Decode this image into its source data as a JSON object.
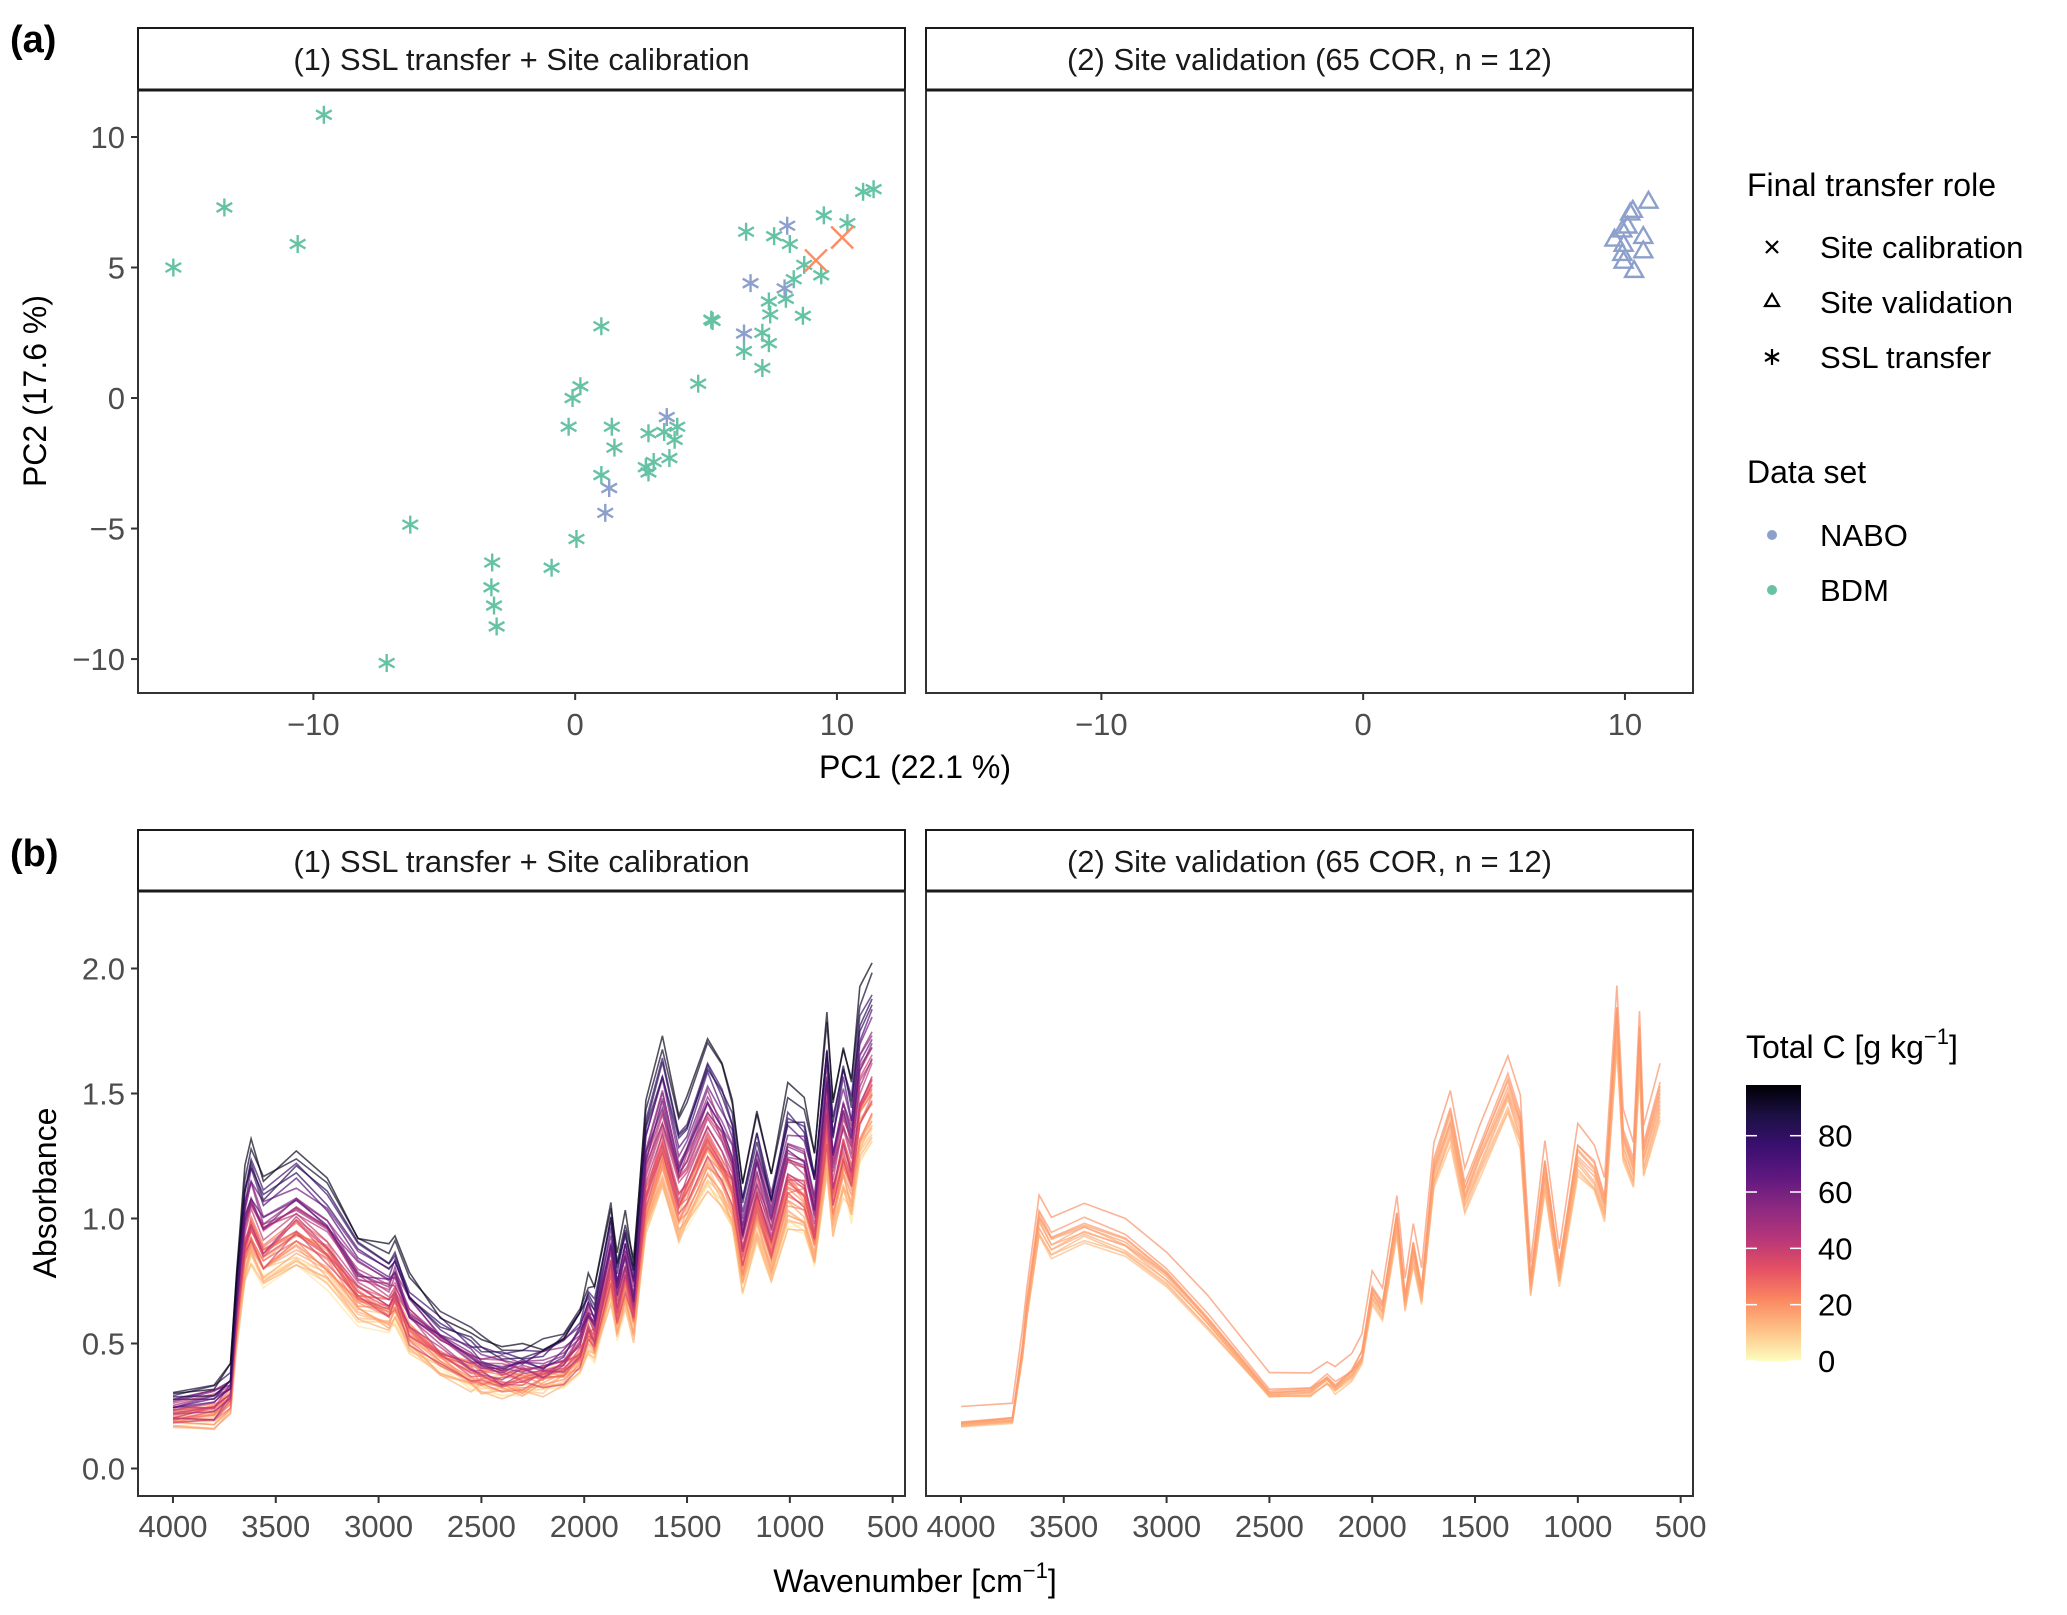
{
  "figure": {
    "panel_a_label": "(a)",
    "panel_b_label": "(b)"
  },
  "colors": {
    "NABO": "#8da0cb",
    "BDM": "#66c2a5",
    "site_calibration": "#fc8d62"
  },
  "chart_data": [
    {
      "type": "scatter",
      "facets": [
        "(1) SSL transfer + Site calibration",
        "(2) Site validation (65 COR, n = 12)"
      ],
      "xlabel": "PC1 (22.1 %)",
      "ylabel": "PC2 (17.6 %)",
      "xlim": [
        -16.7,
        12.6
      ],
      "ylim": [
        -11.3,
        11.8
      ],
      "xticks": [
        -10,
        0,
        10
      ],
      "xtick_labels": [
        "−10",
        "0",
        "10"
      ],
      "yticks": [
        10,
        5,
        0,
        -5,
        -10
      ],
      "ytick_labels": [
        "10",
        "5",
        "0",
        "−5",
        "−10"
      ],
      "grid": false,
      "legend": {
        "position": "right",
        "shape_title": "Final transfer role",
        "shape_items": [
          {
            "label": "Site calibration",
            "symbol": "×"
          },
          {
            "label": "Site validation",
            "symbol": "△"
          },
          {
            "label": "SSL transfer",
            "symbol": "✳"
          }
        ],
        "color_title": "Data set",
        "color_items": [
          {
            "label": "NABO",
            "color": "#8da0cb"
          },
          {
            "label": "BDM",
            "color": "#66c2a5"
          }
        ]
      },
      "series": [
        {
          "facet": 0,
          "dataset": "BDM",
          "role": "SSL transfer",
          "points": [
            [
              -15.35,
              5.0
            ],
            [
              -13.4,
              7.3
            ],
            [
              -10.6,
              5.9
            ],
            [
              -9.6,
              10.85
            ],
            [
              -6.3,
              -4.85
            ],
            [
              -7.2,
              -10.15
            ],
            [
              -3.17,
              -6.3
            ],
            [
              -3.2,
              -7.25
            ],
            [
              -3.1,
              -7.95
            ],
            [
              -3.0,
              -8.75
            ],
            [
              -0.9,
              -6.5
            ],
            [
              0.05,
              -5.4
            ],
            [
              -0.1,
              0.0
            ],
            [
              0.2,
              0.45
            ],
            [
              -0.25,
              -1.1
            ],
            [
              1.4,
              -1.1
            ],
            [
              1.5,
              -1.9
            ],
            [
              1.0,
              -2.95
            ],
            [
              1.0,
              2.75
            ],
            [
              2.8,
              -1.35
            ],
            [
              3.4,
              -1.3
            ],
            [
              3.9,
              -1.1
            ],
            [
              3.8,
              -1.6
            ],
            [
              3.6,
              -2.3
            ],
            [
              3.0,
              -2.45
            ],
            [
              2.7,
              -2.65
            ],
            [
              2.8,
              -2.85
            ],
            [
              4.7,
              0.55
            ],
            [
              5.2,
              3.0
            ],
            [
              5.25,
              2.95
            ],
            [
              6.45,
              1.8
            ],
            [
              7.15,
              1.15
            ],
            [
              7.4,
              2.1
            ],
            [
              7.15,
              2.5
            ],
            [
              6.53,
              6.37
            ],
            [
              7.6,
              6.2
            ],
            [
              8.2,
              5.9
            ],
            [
              7.4,
              3.7
            ],
            [
              7.45,
              3.2
            ],
            [
              8.05,
              3.8
            ],
            [
              8.7,
              3.15
            ],
            [
              8.35,
              4.55
            ],
            [
              8.75,
              5.1
            ],
            [
              9.4,
              4.7
            ],
            [
              9.5,
              7.0
            ],
            [
              10.4,
              6.7
            ],
            [
              11.0,
              7.9
            ],
            [
              11.4,
              8.0
            ]
          ]
        },
        {
          "facet": 0,
          "dataset": "NABO",
          "role": "SSL transfer",
          "points": [
            [
              8.1,
              6.6
            ],
            [
              6.7,
              4.4
            ],
            [
              8.0,
              4.2
            ],
            [
              6.45,
              2.47
            ],
            [
              3.5,
              -0.73
            ],
            [
              1.3,
              -3.45
            ],
            [
              1.15,
              -4.4
            ]
          ]
        },
        {
          "facet": 0,
          "dataset": "NABO",
          "role": "Site calibration",
          "points": [
            [
              9.2,
              5.27
            ],
            [
              10.2,
              6.15
            ]
          ]
        },
        {
          "facet": 1,
          "dataset": "NABO",
          "role": "Site validation",
          "points": [
            [
              10.9,
              7.55
            ],
            [
              10.3,
              7.2
            ],
            [
              10.2,
              7.1
            ],
            [
              10.1,
              6.6
            ],
            [
              9.9,
              6.45
            ],
            [
              9.6,
              6.1
            ],
            [
              10.7,
              6.2
            ],
            [
              9.95,
              5.9
            ],
            [
              10.7,
              5.65
            ],
            [
              9.9,
              5.55
            ],
            [
              9.95,
              5.25
            ],
            [
              10.35,
              4.9
            ]
          ]
        }
      ]
    },
    {
      "type": "line",
      "facets": [
        "(1) SSL transfer + Site calibration",
        "(2) Site validation (65 COR, n = 12)"
      ],
      "xlabel": "Wavenumber [cm",
      "xlabel_sup": "−1",
      "xlabel_end": "]",
      "ylabel": "Absorbance",
      "xlim": [
        4170,
        440
      ],
      "ylim": [
        -0.11,
        2.31
      ],
      "xticks": [
        4000,
        3500,
        3000,
        2500,
        2000,
        1500,
        1000,
        500
      ],
      "xtick_labels": [
        "4000",
        "3500",
        "3000",
        "2500",
        "2000",
        "1500",
        "1000",
        "500"
      ],
      "yticks": [
        0.0,
        0.5,
        1.0,
        1.5,
        2.0
      ],
      "ytick_labels": [
        "0.0",
        "0.5",
        "1.0",
        "1.5",
        "2.0"
      ],
      "grid": false,
      "colorbar": {
        "title": "Total C [g kg",
        "title_sup": "−1",
        "title_end": "]",
        "range": [
          0,
          98
        ],
        "ticks": [
          80,
          60,
          40,
          20,
          0
        ],
        "tick_labels": [
          "80",
          "60",
          "40",
          "20",
          "0"
        ],
        "palette": [
          "#fcfdbf",
          "#fec287",
          "#fb8861",
          "#e55064",
          "#b63679",
          "#8c2981",
          "#5f187f",
          "#3b0f70",
          "#1c1044",
          "#000004"
        ]
      },
      "templates": {
        "calibration_wavenumbers": [
          4000,
          3800,
          3720,
          3690,
          3650,
          3620,
          3560,
          3400,
          3250,
          3100,
          2950,
          2920,
          2850,
          2700,
          2550,
          2500,
          2400,
          2300,
          2200,
          2100,
          2020,
          1980,
          1950,
          1870,
          1840,
          1800,
          1760,
          1700,
          1620,
          1540,
          1500,
          1400,
          1330,
          1280,
          1230,
          1160,
          1090,
          1010,
          930,
          880,
          820,
          790,
          740,
          700,
          660,
          600
        ],
        "calibration_absorbance": [
          0.28,
          0.3,
          0.36,
          0.7,
          1.02,
          1.12,
          1.0,
          1.1,
          1.0,
          0.82,
          0.76,
          0.8,
          0.66,
          0.55,
          0.48,
          0.46,
          0.44,
          0.44,
          0.45,
          0.48,
          0.56,
          0.66,
          0.62,
          0.92,
          0.74,
          0.88,
          0.72,
          1.25,
          1.48,
          1.22,
          1.28,
          1.48,
          1.38,
          1.28,
          0.98,
          1.22,
          1.02,
          1.3,
          1.26,
          1.08,
          1.55,
          1.26,
          1.46,
          1.34,
          1.62,
          1.72
        ],
        "validation_wavenumbers": [
          4000,
          3750,
          3700,
          3680,
          3620,
          3560,
          3400,
          3200,
          3000,
          2800,
          2500,
          2300,
          2220,
          2180,
          2100,
          2050,
          2000,
          1950,
          1880,
          1840,
          1800,
          1760,
          1700,
          1620,
          1550,
          1480,
          1340,
          1280,
          1230,
          1160,
          1090,
          1000,
          920,
          870,
          810,
          780,
          730,
          700,
          680,
          600
        ],
        "validation_absorbance": [
          0.2,
          0.22,
          0.5,
          0.66,
          1.02,
          0.93,
          0.99,
          0.93,
          0.8,
          0.62,
          0.33,
          0.33,
          0.38,
          0.35,
          0.4,
          0.47,
          0.73,
          0.66,
          1.02,
          0.7,
          0.9,
          0.73,
          1.22,
          1.42,
          1.12,
          1.27,
          1.55,
          1.4,
          0.76,
          1.22,
          0.81,
          1.28,
          1.21,
          1.08,
          1.82,
          1.34,
          1.22,
          1.73,
          1.28,
          1.52
        ]
      },
      "series": [
        {
          "facet": 0,
          "total_c_values": [
            2,
            4,
            6,
            8,
            10,
            11,
            12,
            13,
            14,
            15,
            16,
            17,
            18,
            19,
            20,
            21,
            22,
            23,
            24,
            25,
            26,
            28,
            30,
            32,
            33,
            35,
            36,
            38,
            40,
            42,
            44,
            46,
            48,
            50,
            52,
            55,
            58,
            62,
            66,
            70,
            75,
            80,
            85,
            90,
            95
          ]
        },
        {
          "facet": 1,
          "total_c_values": [
            12,
            13,
            14,
            15,
            15,
            16,
            16,
            17,
            18,
            18,
            19,
            20
          ]
        }
      ]
    }
  ]
}
